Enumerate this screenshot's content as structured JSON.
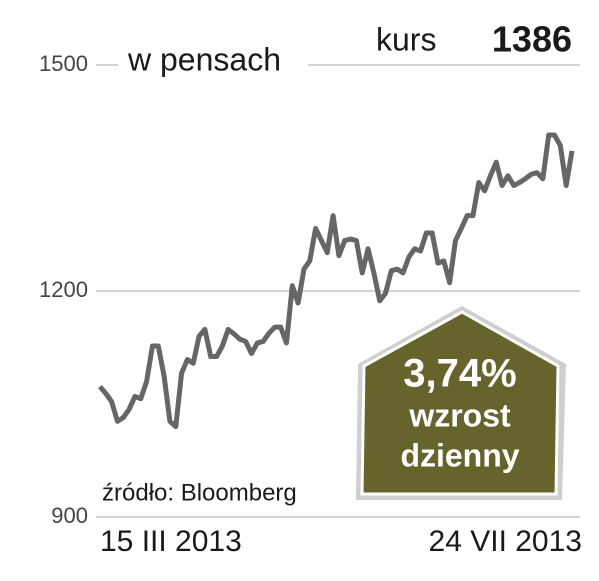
{
  "chart_data": {
    "type": "line",
    "y_label": "w pensach",
    "current_label": "kurs",
    "current_value": "1386",
    "change": "3,74%",
    "change_label": [
      "wzrost",
      "dzienny"
    ],
    "source": "źródło: Bloomberg",
    "categories": [
      "15 III 2013",
      null,
      null,
      null,
      null,
      null,
      null,
      null,
      null,
      null,
      null,
      null,
      null,
      null,
      null,
      null,
      null,
      null,
      null,
      null,
      null,
      null,
      null,
      null,
      null,
      null,
      null,
      null,
      null,
      null,
      null,
      null,
      null,
      null,
      null,
      null,
      null,
      null,
      null,
      null,
      null,
      null,
      null,
      null,
      null,
      null,
      null,
      null,
      null,
      null,
      null,
      null,
      null,
      null,
      null,
      null,
      null,
      null,
      null,
      null,
      null,
      null,
      null,
      null,
      null,
      null,
      null,
      null,
      null,
      null,
      null,
      null,
      null,
      null,
      null,
      null,
      null,
      null,
      null,
      null,
      null,
      "24 VII 2013"
    ],
    "series": [
      {
        "color": "#666666",
        "values": [
          1073,
          1064,
          1053,
          1027,
          1032,
          1043,
          1060,
          1057,
          1080,
          1127,
          1127,
          1087,
          1027,
          1020,
          1091,
          1109,
          1104,
          1140,
          1149,
          1113,
          1113,
          1127,
          1149,
          1143,
          1136,
          1133,
          1117,
          1131,
          1133,
          1144,
          1152,
          1152,
          1131,
          1207,
          1184,
          1229,
          1240,
          1283,
          1267,
          1251,
          1300,
          1247,
          1267,
          1269,
          1267,
          1224,
          1256,
          1224,
          1187,
          1197,
          1227,
          1229,
          1224,
          1245,
          1256,
          1253,
          1277,
          1277,
          1237,
          1240,
          1211,
          1267,
          1283,
          1300,
          1300,
          1344,
          1333,
          1353,
          1371,
          1340,
          1353,
          1340,
          1344,
          1349,
          1355,
          1357,
          1349,
          1407,
          1407,
          1393,
          1340,
          1386
        ]
      }
    ],
    "ylim": [
      900,
      1500
    ],
    "yticks": [
      900,
      1200,
      1500
    ],
    "grid": true
  }
}
